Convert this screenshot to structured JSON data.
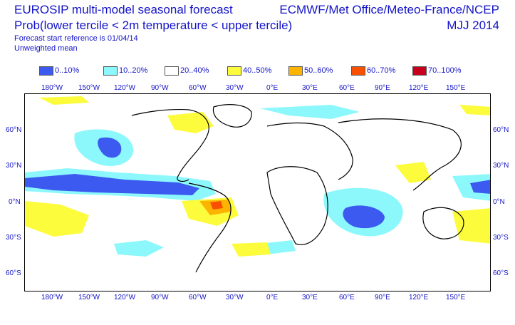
{
  "header": {
    "title": "EUROSIP multi-model seasonal forecast",
    "subtitle": "Prob(lower tercile < 2m temperature < upper tercile)",
    "forecast_ref": "Forecast start reference is 01/04/14",
    "weighting": "Unweighted mean",
    "centres": "ECMWF/Met Office/Meteo-France/NCEP",
    "season": "MJJ 2014"
  },
  "legend": {
    "items": [
      {
        "label": "0..10%",
        "color": "#3c5af0"
      },
      {
        "label": "10..20%",
        "color": "#8cf8fc"
      },
      {
        "label": "20..40%",
        "color": "#ffffff"
      },
      {
        "label": "40..50%",
        "color": "#fcfc3c"
      },
      {
        "label": "50..60%",
        "color": "#fcb400"
      },
      {
        "label": "60..70%",
        "color": "#f85000"
      },
      {
        "label": "70..100%",
        "color": "#c8001e"
      }
    ]
  },
  "axes": {
    "lon_labels": [
      "180°W",
      "150°W",
      "120°W",
      "90°W",
      "60°W",
      "30°W",
      "0°E",
      "30°E",
      "60°E",
      "90°E",
      "120°E",
      "150°E"
    ],
    "lat_left": [
      "60°N",
      "30°N",
      "0°N",
      "30°S",
      "60°S"
    ],
    "lat_right": [
      "60°N",
      "30°N",
      "0°N",
      "30°S",
      "60°S"
    ]
  }
}
